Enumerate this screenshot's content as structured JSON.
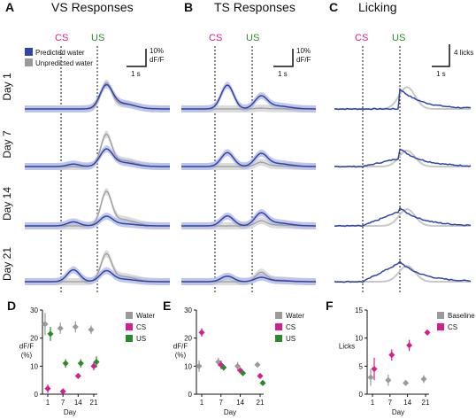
{
  "colors": {
    "predicted": "#2f45a8",
    "predicted_band": "#b8c0e6",
    "unpredicted": "#9a9a9a",
    "unpredicted_band": "#dcdcdc",
    "cs": "#d61d8f",
    "us": "#2a8a2a"
  },
  "panels": [
    {
      "letter": "A",
      "title": "VS Responses"
    },
    {
      "letter": "B",
      "title": "TS Responses"
    },
    {
      "letter": "C",
      "title": "Licking"
    }
  ],
  "events": {
    "cs": "CS",
    "us": "US"
  },
  "days": [
    "Day 1",
    "Day 7",
    "Day 14",
    "Day 21"
  ],
  "legend_top": {
    "predicted": "Predicted water",
    "unpredicted": "Unpredicted water"
  },
  "scalebars": {
    "A": {
      "y": "10%",
      "y2": "dF/F",
      "x": "1 s"
    },
    "B": {
      "y": "10%",
      "y2": "dF/F",
      "x": "1 s"
    },
    "C": {
      "y": "4 licks",
      "x": "1 s"
    }
  },
  "chart_data": [
    {
      "panel": "D",
      "type": "scatter",
      "xlabel": "Day",
      "ylabel": "dF/F\n(%)",
      "x": [
        1,
        7,
        14,
        21
      ],
      "xticks": [
        "1",
        "7",
        "14",
        "21"
      ],
      "ylim": [
        0,
        30
      ],
      "yticks": [
        0,
        10,
        20,
        30
      ],
      "series": [
        {
          "name": "Water",
          "color": "#9a9a9a",
          "values": [
            25,
            23.5,
            24,
            23
          ],
          "errors": [
            4,
            2,
            2,
            1.5
          ]
        },
        {
          "name": "CS",
          "color": "#d61d8f",
          "values": [
            2,
            1,
            6.5,
            10
          ],
          "errors": [
            1.5,
            0.5,
            1,
            1.5
          ]
        },
        {
          "name": "US",
          "color": "#2a8a2a",
          "values": [
            21.5,
            11,
            11,
            11.5
          ],
          "errors": [
            2.5,
            1.5,
            1.5,
            2
          ]
        }
      ]
    },
    {
      "panel": "E",
      "type": "scatter",
      "xlabel": "Day",
      "ylabel": "dF/F\n(%)",
      "x": [
        1,
        7,
        14,
        21
      ],
      "xticks": [
        "1",
        "7",
        "14",
        "21"
      ],
      "ylim": [
        0,
        30
      ],
      "yticks": [
        0,
        10,
        20,
        30
      ],
      "series": [
        {
          "name": "Water",
          "color": "#9a9a9a",
          "values": [
            10,
            11.5,
            10,
            10.5
          ],
          "errors": [
            2,
            1.5,
            1.5,
            1
          ]
        },
        {
          "name": "CS",
          "color": "#d61d8f",
          "values": [
            22,
            10.5,
            8.5,
            6.5
          ],
          "errors": [
            1.5,
            1.5,
            1,
            1
          ]
        },
        {
          "name": "US",
          "color": "#2a8a2a",
          "values": [
            null,
            9.5,
            7.5,
            4
          ],
          "errors": [
            0,
            1,
            1,
            1
          ]
        }
      ]
    },
    {
      "panel": "F",
      "type": "scatter",
      "xlabel": "Day",
      "ylabel": "Licks",
      "x": [
        1,
        7,
        14,
        21
      ],
      "xticks": [
        "1",
        "7",
        "14",
        "21"
      ],
      "ylim": [
        0,
        15
      ],
      "yticks": [
        0,
        5,
        10,
        15
      ],
      "series": [
        {
          "name": "Baseline",
          "color": "#9a9a9a",
          "values": [
            3,
            2.5,
            2,
            2.7
          ],
          "errors": [
            1.5,
            1,
            0.5,
            0.7
          ]
        },
        {
          "name": "CS",
          "color": "#d61d8f",
          "values": [
            4.5,
            7,
            8.7,
            11
          ],
          "errors": [
            2,
            1,
            1,
            0.5
          ]
        }
      ]
    }
  ]
}
